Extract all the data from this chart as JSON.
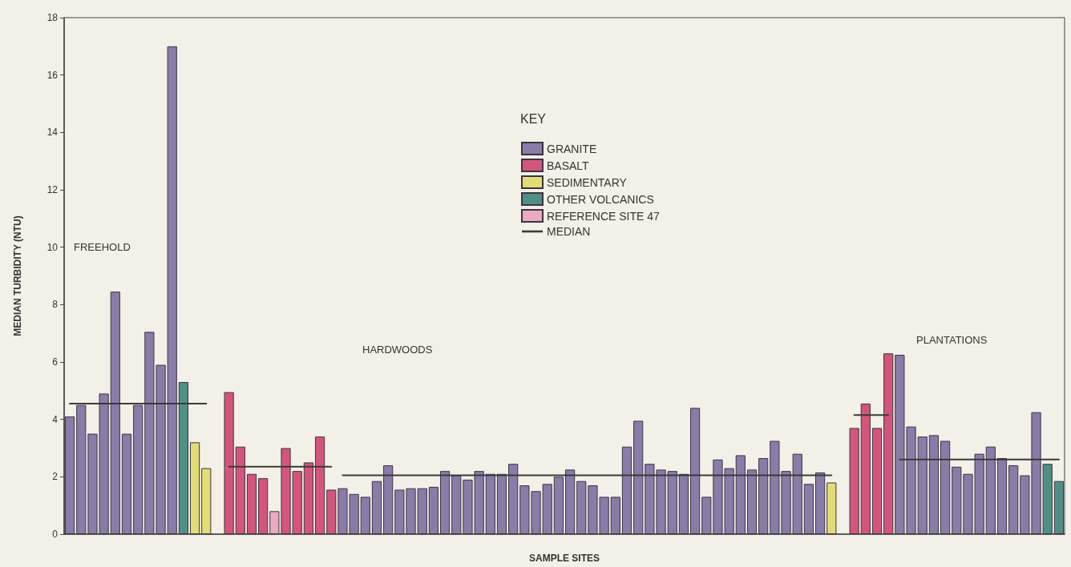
{
  "chart_data": {
    "type": "bar",
    "xlabel": "SAMPLE SITES",
    "ylabel": "MEDIAN TURBIDITY (NTU)",
    "legend_title": "KEY",
    "legend": "top",
    "grid": false,
    "marker": "none",
    "line_style": "solid",
    "annotations": [
      "FREEHOLD",
      "HARDWOODS",
      "PLANTATIONS"
    ],
    "ylim": [
      0,
      18
    ],
    "yticks": [
      0,
      2,
      4,
      6,
      8,
      10,
      12,
      14,
      16,
      18
    ],
    "categories": [
      null,
      null,
      null,
      null,
      null,
      null,
      null,
      null,
      null,
      null,
      null,
      null,
      null,
      null,
      null,
      null,
      null,
      null,
      null,
      null,
      null,
      null,
      null,
      null,
      null,
      null,
      null,
      null,
      null,
      null,
      null,
      null,
      null,
      null,
      null,
      null,
      null,
      null,
      null,
      null,
      null,
      null,
      null,
      null,
      null,
      null,
      null,
      null,
      null,
      null,
      null,
      null,
      null,
      null,
      null,
      null,
      null,
      null,
      null,
      null,
      null,
      null,
      null,
      null,
      null,
      null,
      null,
      null,
      null,
      null,
      null,
      null,
      null,
      null,
      null,
      null,
      null,
      null,
      null,
      null,
      null,
      null,
      null,
      null,
      null,
      null,
      null,
      null
    ],
    "series": [
      {
        "name": "GRANITE",
        "color": "#8a7ca8",
        "values": [
          4.1,
          4.5,
          3.5,
          4.9,
          8.45,
          3.5,
          4.5,
          7.05,
          5.9,
          17,
          null,
          null,
          null,
          null,
          null,
          null,
          null,
          null,
          null,
          null,
          null,
          null,
          null,
          null,
          1.6,
          1.4,
          1.3,
          1.85,
          2.4,
          1.55,
          1.6,
          1.6,
          1.65,
          2.2,
          2.05,
          1.9,
          2.2,
          2.1,
          2.1,
          2.45,
          1.7,
          1.5,
          1.75,
          2.0,
          2.25,
          1.85,
          1.7,
          1.3,
          1.3,
          3.05,
          3.95,
          2.45,
          2.25,
          2.2,
          2.1,
          4.4,
          1.3,
          2.6,
          2.3,
          2.75,
          2.25,
          2.65,
          3.25,
          2.2,
          2.8,
          1.75,
          2.15,
          null,
          null,
          null,
          null,
          null,
          null,
          6.25,
          3.75,
          3.4,
          3.45,
          3.25,
          2.35,
          2.1,
          2.8,
          3.05,
          2.65,
          2.4,
          2.05,
          4.25,
          null,
          null
        ]
      },
      {
        "name": "BASALT",
        "color": "#d4557c",
        "values": [
          null,
          null,
          null,
          null,
          null,
          null,
          null,
          null,
          null,
          null,
          null,
          null,
          null,
          null,
          4.95,
          3.05,
          2.1,
          1.95,
          null,
          3.0,
          2.2,
          2.5,
          3.4,
          1.55,
          null,
          null,
          null,
          null,
          null,
          null,
          null,
          null,
          null,
          null,
          null,
          null,
          null,
          null,
          null,
          null,
          null,
          null,
          null,
          null,
          null,
          null,
          null,
          null,
          null,
          null,
          null,
          null,
          null,
          null,
          null,
          null,
          null,
          null,
          null,
          null,
          null,
          null,
          null,
          null,
          null,
          null,
          null,
          null,
          null,
          3.7,
          4.55,
          3.7,
          6.3,
          null,
          null,
          null,
          null,
          null,
          null,
          null,
          null,
          null,
          null,
          null,
          null,
          null,
          null,
          null
        ]
      },
      {
        "name": "SEDIMENTARY",
        "color": "#e3dc74",
        "values": [
          null,
          null,
          null,
          null,
          null,
          null,
          null,
          null,
          null,
          null,
          null,
          3.2,
          2.3,
          null,
          null,
          null,
          null,
          null,
          null,
          null,
          null,
          null,
          null,
          null,
          null,
          null,
          null,
          null,
          null,
          null,
          null,
          null,
          null,
          null,
          null,
          null,
          null,
          null,
          null,
          null,
          null,
          null,
          null,
          null,
          null,
          null,
          null,
          null,
          null,
          null,
          null,
          null,
          null,
          null,
          null,
          null,
          null,
          null,
          null,
          null,
          null,
          null,
          null,
          null,
          null,
          null,
          null,
          1.8,
          null,
          null,
          null,
          null,
          null,
          null,
          null,
          null,
          null,
          null,
          null,
          null,
          null,
          null,
          null,
          null,
          null,
          null,
          null,
          null
        ]
      },
      {
        "name": "OTHER VOLCANICS",
        "color": "#4f8f86",
        "values": [
          null,
          null,
          null,
          null,
          null,
          null,
          null,
          null,
          null,
          null,
          5.3,
          null,
          null,
          null,
          null,
          null,
          null,
          null,
          null,
          null,
          null,
          null,
          null,
          null,
          null,
          null,
          null,
          null,
          null,
          null,
          null,
          null,
          null,
          null,
          null,
          null,
          null,
          null,
          null,
          null,
          null,
          null,
          null,
          null,
          null,
          null,
          null,
          null,
          null,
          null,
          null,
          null,
          null,
          null,
          null,
          null,
          null,
          null,
          null,
          null,
          null,
          null,
          null,
          null,
          null,
          null,
          null,
          null,
          null,
          null,
          null,
          null,
          null,
          null,
          null,
          null,
          null,
          null,
          null,
          null,
          null,
          null,
          null,
          null,
          null,
          null,
          2.45,
          1.85
        ]
      },
      {
        "name": "REFERENCE SITE 47",
        "color": "#eba9c2",
        "values": [
          null,
          null,
          null,
          null,
          null,
          null,
          null,
          null,
          null,
          null,
          null,
          null,
          null,
          null,
          null,
          null,
          null,
          null,
          0.8,
          null,
          null,
          null,
          null,
          null,
          null,
          null,
          null,
          null,
          null,
          null,
          null,
          null,
          null,
          null,
          null,
          null,
          null,
          null,
          null,
          null,
          null,
          null,
          null,
          null,
          null,
          null,
          null,
          null,
          null,
          null,
          null,
          null,
          null,
          null,
          null,
          null,
          null,
          null,
          null,
          null,
          null,
          null,
          null,
          null,
          null,
          null,
          null,
          null,
          null,
          null,
          null,
          null,
          null,
          null,
          null,
          null,
          null,
          null,
          null,
          null,
          null,
          null,
          null,
          null,
          null,
          null,
          null,
          null
        ]
      },
      {
        "name": "MEDIAN",
        "type": "line",
        "color": "#3a3a3a",
        "values": [
          4.55,
          4.55,
          4.55,
          4.55,
          4.55,
          4.55,
          4.55,
          4.55,
          4.55,
          4.55,
          4.55,
          4.55,
          4.55,
          null,
          null,
          null,
          null,
          null,
          null,
          null,
          null,
          null,
          null,
          null,
          null,
          null,
          null,
          null,
          null,
          null,
          null,
          null,
          null,
          null,
          null,
          null,
          null,
          null,
          null,
          null,
          null,
          null,
          null,
          null,
          null,
          null,
          null,
          null,
          null,
          null,
          null,
          null,
          null,
          null,
          null,
          null,
          null,
          null,
          null,
          null,
          null,
          null,
          null,
          null,
          null,
          null,
          null,
          null,
          null,
          null,
          null,
          null,
          null,
          null,
          null,
          null,
          null,
          null,
          null,
          null,
          null,
          null,
          null,
          null,
          null,
          null,
          null,
          null
        ]
      },
      {
        "type": "line",
        "color": "#3a3a3a",
        "values": [
          null,
          null,
          null,
          null,
          null,
          null,
          null,
          null,
          null,
          null,
          null,
          null,
          null,
          null,
          2.35,
          2.35,
          2.35,
          2.35,
          2.35,
          2.35,
          2.35,
          2.35,
          2.35,
          2.35,
          null,
          null,
          null,
          null,
          null,
          null,
          null,
          null,
          null,
          null,
          null,
          null,
          null,
          null,
          null,
          null,
          null,
          null,
          null,
          null,
          null,
          null,
          null,
          null,
          null,
          null,
          null,
          null,
          null,
          null,
          null,
          null,
          null,
          null,
          null,
          null,
          null,
          null,
          null,
          null,
          null,
          null,
          null,
          null,
          null,
          null,
          null,
          null,
          null,
          null,
          null,
          null,
          null,
          null,
          null,
          null,
          null,
          null,
          null,
          null,
          null,
          null,
          null,
          null
        ]
      },
      {
        "type": "line",
        "color": "#3a3a3a",
        "values": [
          null,
          null,
          null,
          null,
          null,
          null,
          null,
          null,
          null,
          null,
          null,
          null,
          null,
          null,
          null,
          null,
          null,
          null,
          null,
          null,
          null,
          null,
          null,
          null,
          2.05,
          2.05,
          2.05,
          2.05,
          2.05,
          2.05,
          2.05,
          2.05,
          2.05,
          2.05,
          2.05,
          2.05,
          2.05,
          2.05,
          2.05,
          2.05,
          2.05,
          2.05,
          2.05,
          2.05,
          2.05,
          2.05,
          2.05,
          2.05,
          2.05,
          2.05,
          2.05,
          2.05,
          2.05,
          2.05,
          2.05,
          2.05,
          2.05,
          2.05,
          2.05,
          2.05,
          2.05,
          2.05,
          2.05,
          2.05,
          2.05,
          2.05,
          2.05,
          2.05,
          null,
          null,
          null,
          null,
          null,
          null,
          null,
          null,
          null,
          null,
          null,
          null,
          null,
          null,
          null,
          null,
          null,
          null,
          null,
          null
        ]
      },
      {
        "type": "line",
        "color": "#3a3a3a",
        "values": [
          null,
          null,
          null,
          null,
          null,
          null,
          null,
          null,
          null,
          null,
          null,
          null,
          null,
          null,
          null,
          null,
          null,
          null,
          null,
          null,
          null,
          null,
          null,
          null,
          null,
          null,
          null,
          null,
          null,
          null,
          null,
          null,
          null,
          null,
          null,
          null,
          null,
          null,
          null,
          null,
          null,
          null,
          null,
          null,
          null,
          null,
          null,
          null,
          null,
          null,
          null,
          null,
          null,
          null,
          null,
          null,
          null,
          null,
          null,
          null,
          null,
          null,
          null,
          null,
          null,
          null,
          null,
          null,
          null,
          4.15,
          4.15,
          4.15,
          4.15,
          null,
          null,
          null,
          null,
          null,
          null,
          null,
          null,
          null,
          null,
          null,
          null,
          null,
          null,
          null
        ]
      },
      {
        "type": "line",
        "color": "#3a3a3a",
        "values": [
          null,
          null,
          null,
          null,
          null,
          null,
          null,
          null,
          null,
          null,
          null,
          null,
          null,
          null,
          null,
          null,
          null,
          null,
          null,
          null,
          null,
          null,
          null,
          null,
          null,
          null,
          null,
          null,
          null,
          null,
          null,
          null,
          null,
          null,
          null,
          null,
          null,
          null,
          null,
          null,
          null,
          null,
          null,
          null,
          null,
          null,
          null,
          null,
          null,
          null,
          null,
          null,
          null,
          null,
          null,
          null,
          null,
          null,
          null,
          null,
          null,
          null,
          null,
          null,
          null,
          null,
          null,
          null,
          null,
          null,
          null,
          null,
          null,
          2.6,
          2.6,
          2.6,
          2.6,
          2.6,
          2.6,
          2.6,
          2.6,
          2.6,
          2.6,
          2.6,
          2.6,
          2.6,
          2.6,
          2.6
        ]
      }
    ]
  }
}
